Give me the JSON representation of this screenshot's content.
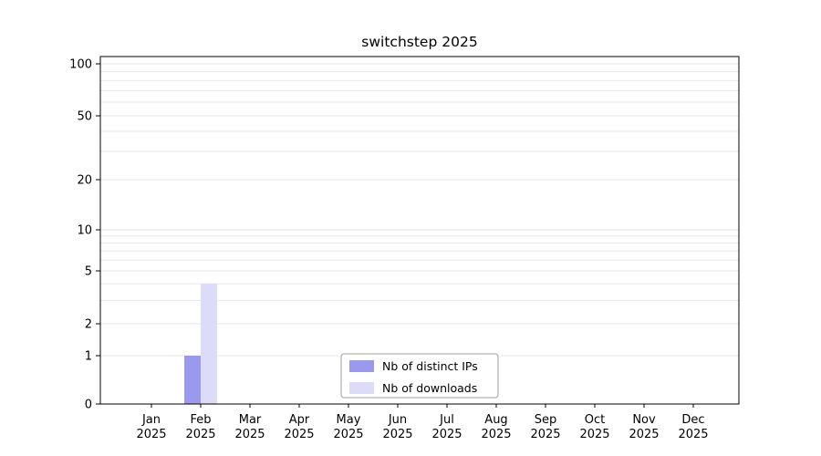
{
  "title": "switchstep 2025",
  "chart_data": {
    "type": "bar",
    "title": "switchstep 2025",
    "categories": [
      "Jan",
      "Feb",
      "Mar",
      "Apr",
      "May",
      "Jun",
      "Jul",
      "Aug",
      "Sep",
      "Oct",
      "Nov",
      "Dec"
    ],
    "category_year": "2025",
    "series": [
      {
        "name": "Nb of distinct IPs",
        "color": "#9b99ee",
        "values": [
          0,
          1,
          0,
          0,
          0,
          0,
          0,
          0,
          0,
          0,
          0,
          0
        ]
      },
      {
        "name": "Nb of downloads",
        "color": "#dcdcf8",
        "values": [
          0,
          4,
          0,
          0,
          0,
          0,
          0,
          0,
          0,
          0,
          0,
          0
        ]
      }
    ],
    "yticks": [
      0,
      1,
      2,
      5,
      10,
      20,
      50,
      100
    ],
    "yscale": "log",
    "ylim": [
      0,
      100
    ],
    "xlabel": "",
    "ylabel": "",
    "grid": "horizontal-minor",
    "legend_position": "bottom-center",
    "colors": {
      "gridline": "#e7e7e7",
      "axis": "#000000",
      "legend_border": "#9e9e9e",
      "background": "#ffffff"
    }
  }
}
